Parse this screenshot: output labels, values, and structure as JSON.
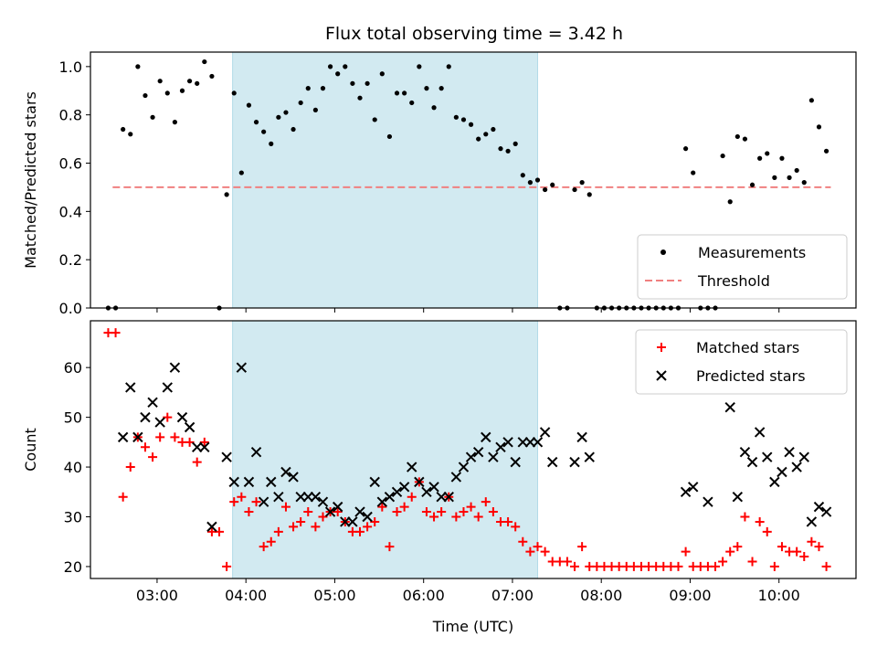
{
  "title": "Flux total observing time = 3.42 h",
  "chart_data": [
    {
      "type": "scatter",
      "ylabel": "Matched/Predicted stars",
      "xlim": [
        "02:15",
        "10:52"
      ],
      "ylim": [
        0,
        1.06
      ],
      "yticks": [
        "0.0",
        "0.2",
        "0.4",
        "0.6",
        "0.8",
        "1.0"
      ],
      "shaded_span": {
        "x_start": "03:51",
        "x_end": "07:17",
        "color": "#add8e6"
      },
      "legend_position": "lower-right",
      "threshold": {
        "label": "Threshold",
        "value": 0.5,
        "x_start": "02:30",
        "x_end": "10:35",
        "color": "#f08080"
      },
      "series": [
        {
          "name": "Measurements",
          "marker": "dot",
          "color": "#000000",
          "x": [
            "02:27",
            "02:32",
            "02:37",
            "02:42",
            "02:47",
            "02:52",
            "02:57",
            "03:02",
            "03:07",
            "03:12",
            "03:17",
            "03:22",
            "03:27",
            "03:32",
            "03:37",
            "03:42",
            "03:47",
            "03:52",
            "03:57",
            "04:02",
            "04:07",
            "04:12",
            "04:17",
            "04:22",
            "04:27",
            "04:32",
            "04:37",
            "04:42",
            "04:47",
            "04:52",
            "04:57",
            "05:02",
            "05:07",
            "05:12",
            "05:17",
            "05:22",
            "05:27",
            "05:32",
            "05:37",
            "05:42",
            "05:47",
            "05:52",
            "05:57",
            "06:02",
            "06:07",
            "06:12",
            "06:17",
            "06:22",
            "06:27",
            "06:32",
            "06:37",
            "06:42",
            "06:47",
            "06:52",
            "06:57",
            "07:02",
            "07:07",
            "07:12",
            "07:17",
            "07:22",
            "07:27",
            "07:32",
            "07:37",
            "07:42",
            "07:47",
            "07:52",
            "07:57",
            "08:02",
            "08:07",
            "08:12",
            "08:17",
            "08:22",
            "08:27",
            "08:32",
            "08:37",
            "08:42",
            "08:47",
            "08:52",
            "08:57",
            "09:02",
            "09:07",
            "09:12",
            "09:17",
            "09:22",
            "09:27",
            "09:32",
            "09:37",
            "09:42",
            "09:47",
            "09:52",
            "09:57",
            "10:02",
            "10:07",
            "10:12",
            "10:17",
            "10:22",
            "10:27",
            "10:32"
          ],
          "y": [
            0,
            0,
            0.74,
            0.72,
            1.0,
            0.88,
            0.79,
            0.94,
            0.89,
            0.77,
            0.9,
            0.94,
            0.93,
            1.02,
            0.96,
            0,
            0.47,
            0.89,
            0.56,
            0.84,
            0.77,
            0.73,
            0.68,
            0.79,
            0.81,
            0.74,
            0.85,
            0.91,
            0.82,
            0.91,
            1.0,
            0.97,
            1.0,
            0.93,
            0.87,
            0.93,
            0.78,
            0.97,
            0.71,
            0.89,
            0.89,
            0.85,
            1.0,
            0.91,
            0.83,
            0.91,
            1.0,
            0.79,
            0.78,
            0.76,
            0.7,
            0.72,
            0.74,
            0.66,
            0.65,
            0.68,
            0.55,
            0.52,
            0.53,
            0.49,
            0.51,
            0,
            0,
            0.49,
            0.52,
            0.47,
            0,
            0,
            0,
            0,
            0,
            0,
            0,
            0,
            0,
            0,
            0,
            0,
            0.66,
            0.56,
            0,
            0,
            0,
            0.63,
            0.44,
            0.71,
            0.7,
            0.51,
            0.62,
            0.64,
            0.54,
            0.62,
            0.54,
            0.57,
            0.52,
            0.86,
            0.75,
            0.65
          ]
        }
      ]
    },
    {
      "type": "scatter",
      "xlabel": "Time (UTC)",
      "ylabel": "Count",
      "xlim": [
        "02:15",
        "10:52"
      ],
      "ylim": [
        17.6,
        69.4
      ],
      "yticks": [
        "20",
        "30",
        "40",
        "50",
        "60"
      ],
      "xticks": [
        "03:00",
        "04:00",
        "05:00",
        "06:00",
        "07:00",
        "08:00",
        "09:00",
        "10:00"
      ],
      "shaded_span": {
        "x_start": "03:51",
        "x_end": "07:17",
        "color": "#add8e6"
      },
      "legend_position": "top-right",
      "series": [
        {
          "name": "Matched stars",
          "marker": "plus",
          "color": "#ff0000",
          "x": [
            "02:27",
            "02:32",
            "02:37",
            "02:42",
            "02:47",
            "02:52",
            "02:57",
            "03:02",
            "03:07",
            "03:12",
            "03:17",
            "03:22",
            "03:27",
            "03:32",
            "03:37",
            "03:42",
            "03:47",
            "03:52",
            "03:57",
            "04:02",
            "04:07",
            "04:12",
            "04:17",
            "04:22",
            "04:27",
            "04:32",
            "04:37",
            "04:42",
            "04:47",
            "04:52",
            "04:57",
            "05:02",
            "05:07",
            "05:12",
            "05:17",
            "05:22",
            "05:27",
            "05:32",
            "05:37",
            "05:42",
            "05:47",
            "05:52",
            "05:57",
            "06:02",
            "06:07",
            "06:12",
            "06:17",
            "06:22",
            "06:27",
            "06:32",
            "06:37",
            "06:42",
            "06:47",
            "06:52",
            "06:57",
            "07:02",
            "07:07",
            "07:12",
            "07:17",
            "07:22",
            "07:27",
            "07:32",
            "07:37",
            "07:42",
            "07:47",
            "07:52",
            "07:57",
            "08:02",
            "08:07",
            "08:12",
            "08:17",
            "08:22",
            "08:27",
            "08:32",
            "08:37",
            "08:42",
            "08:47",
            "08:52",
            "08:57",
            "09:02",
            "09:07",
            "09:12",
            "09:17",
            "09:22",
            "09:27",
            "09:32",
            "09:37",
            "09:42",
            "09:47",
            "09:52",
            "09:57",
            "10:02",
            "10:07",
            "10:12",
            "10:17",
            "10:22",
            "10:27",
            "10:32"
          ],
          "y": [
            67,
            67,
            34,
            40,
            46,
            44,
            42,
            46,
            50,
            46,
            45,
            45,
            41,
            45,
            27,
            27,
            20,
            33,
            34,
            31,
            33,
            24,
            25,
            27,
            32,
            28,
            29,
            31,
            28,
            30,
            31,
            31,
            29,
            27,
            27,
            28,
            29,
            32,
            24,
            31,
            32,
            34,
            37,
            31,
            30,
            31,
            34,
            30,
            31,
            32,
            30,
            33,
            31,
            29,
            29,
            28,
            25,
            23,
            24,
            23,
            21,
            21,
            21,
            20,
            24,
            20,
            20,
            20,
            20,
            20,
            20,
            20,
            20,
            20,
            20,
            20,
            20,
            20,
            23,
            20,
            20,
            20,
            20,
            21,
            23,
            24,
            30,
            21,
            29,
            27,
            20,
            24,
            23,
            23,
            22,
            25,
            24,
            20
          ]
        },
        {
          "name": "Predicted stars",
          "marker": "x",
          "color": "#000000",
          "x": [
            "02:37",
            "02:42",
            "02:47",
            "02:52",
            "02:57",
            "03:02",
            "03:07",
            "03:12",
            "03:17",
            "03:22",
            "03:27",
            "03:32",
            "03:37",
            "03:47",
            "03:52",
            "03:57",
            "04:02",
            "04:07",
            "04:12",
            "04:17",
            "04:22",
            "04:27",
            "04:32",
            "04:37",
            "04:42",
            "04:47",
            "04:52",
            "04:57",
            "05:02",
            "05:07",
            "05:12",
            "05:17",
            "05:22",
            "05:27",
            "05:32",
            "05:37",
            "05:42",
            "05:47",
            "05:52",
            "05:57",
            "06:02",
            "06:07",
            "06:12",
            "06:17",
            "06:22",
            "06:27",
            "06:32",
            "06:37",
            "06:42",
            "06:47",
            "06:52",
            "06:57",
            "07:02",
            "07:07",
            "07:12",
            "07:17",
            "07:22",
            "07:27",
            "07:42",
            "07:47",
            "07:52",
            "08:57",
            "09:02",
            "09:12",
            "09:27",
            "09:32",
            "09:37",
            "09:42",
            "09:47",
            "09:52",
            "09:57",
            "10:02",
            "10:07",
            "10:12",
            "10:17",
            "10:22",
            "10:27",
            "10:32"
          ],
          "y": [
            46,
            56,
            46,
            50,
            53,
            49,
            56,
            60,
            50,
            48,
            44,
            44,
            28,
            42,
            37,
            60,
            37,
            43,
            33,
            37,
            34,
            39,
            38,
            34,
            34,
            34,
            33,
            31,
            32,
            29,
            29,
            31,
            30,
            37,
            33,
            34,
            35,
            36,
            40,
            37,
            35,
            36,
            34,
            34,
            38,
            40,
            42,
            43,
            46,
            42,
            44,
            45,
            41,
            45,
            45,
            45,
            47,
            41,
            41,
            46,
            42,
            35,
            36,
            33,
            52,
            34,
            43,
            41,
            47,
            42,
            37,
            39,
            43,
            40,
            42,
            29,
            32,
            31
          ]
        }
      ]
    }
  ]
}
